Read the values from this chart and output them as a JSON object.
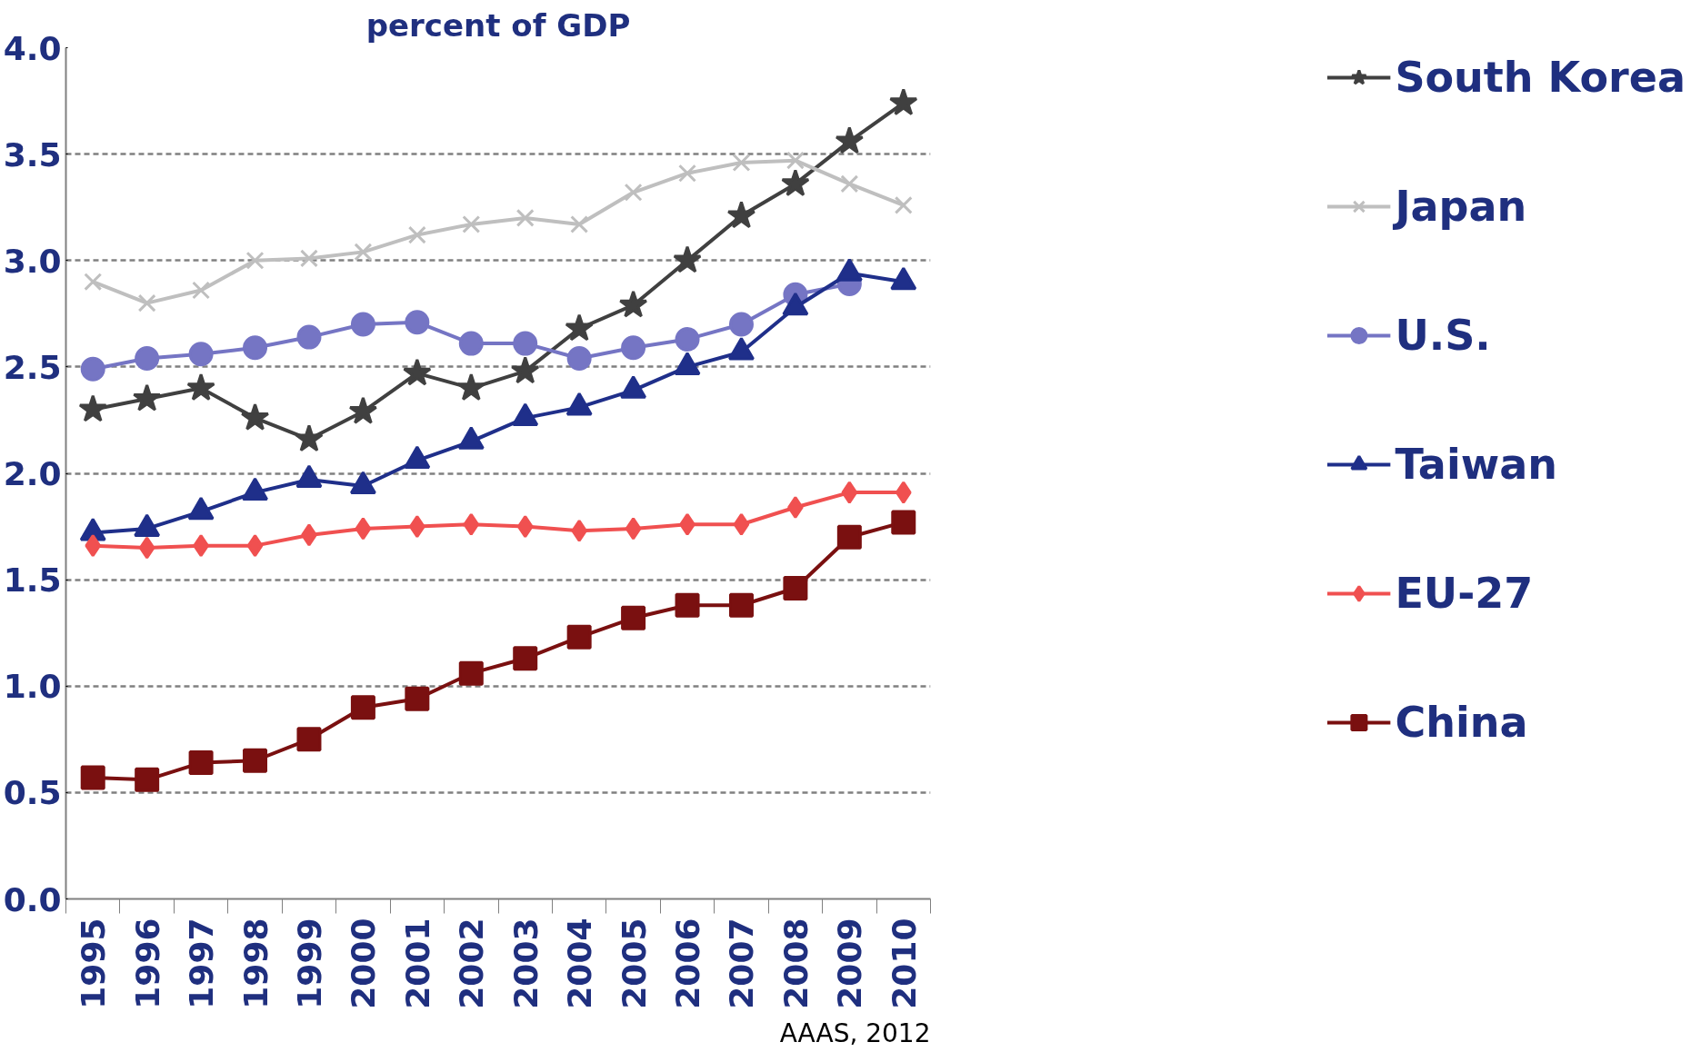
{
  "chart_data": {
    "type": "line",
    "title": "percent of GDP",
    "categories": [
      "1995",
      "1996",
      "1997",
      "1998",
      "1999",
      "2000",
      "2001",
      "2002",
      "2003",
      "2004",
      "2005",
      "2006",
      "2007",
      "2008",
      "2009",
      "2010"
    ],
    "series": [
      {
        "name": "South Korea",
        "color": "#404040",
        "marker": "star",
        "values": [
          2.3,
          2.35,
          2.4,
          2.26,
          2.16,
          2.29,
          2.47,
          2.4,
          2.48,
          2.68,
          2.79,
          3.0,
          3.21,
          3.36,
          3.56,
          3.74
        ]
      },
      {
        "name": "Japan",
        "color": "#bfbfbf",
        "marker": "cross",
        "values": [
          2.9,
          2.8,
          2.86,
          3.0,
          3.01,
          3.04,
          3.12,
          3.17,
          3.2,
          3.17,
          3.32,
          3.41,
          3.46,
          3.47,
          3.36,
          3.26
        ]
      },
      {
        "name": "U.S.",
        "color": "#7575c4",
        "marker": "circle",
        "values": [
          2.49,
          2.54,
          2.56,
          2.59,
          2.64,
          2.7,
          2.71,
          2.61,
          2.61,
          2.54,
          2.59,
          2.63,
          2.7,
          2.84,
          2.89,
          null
        ]
      },
      {
        "name": "Taiwan",
        "color": "#1f2f8a",
        "marker": "triangle",
        "values": [
          1.72,
          1.74,
          1.82,
          1.91,
          1.97,
          1.94,
          2.06,
          2.15,
          2.26,
          2.31,
          2.39,
          2.5,
          2.57,
          2.78,
          2.94,
          2.9
        ]
      },
      {
        "name": "EU-27",
        "color": "#f05050",
        "marker": "diamond",
        "values": [
          1.66,
          1.65,
          1.66,
          1.66,
          1.71,
          1.74,
          1.75,
          1.76,
          1.75,
          1.73,
          1.74,
          1.76,
          1.76,
          1.84,
          1.91,
          1.91
        ]
      },
      {
        "name": "China",
        "color": "#7a1010",
        "marker": "square",
        "values": [
          0.57,
          0.56,
          0.64,
          0.65,
          0.75,
          0.9,
          0.94,
          1.06,
          1.13,
          1.23,
          1.32,
          1.38,
          1.38,
          1.46,
          1.7,
          1.77
        ]
      }
    ],
    "ylim": [
      0,
      4.0
    ],
    "yticks": [
      {
        "value": 0,
        "label": "0.0"
      },
      0.5,
      {
        "value": 1,
        "label": "1.0"
      },
      1.5,
      {
        "value": 2,
        "label": "2.0"
      },
      2.5,
      {
        "value": 3,
        "label": "3.0"
      },
      3.5,
      {
        "value": 4,
        "label": "4.0"
      }
    ],
    "grid": "y",
    "legend": "right",
    "line_style": "solid",
    "annotations": [
      "AAAS, 2012"
    ]
  }
}
